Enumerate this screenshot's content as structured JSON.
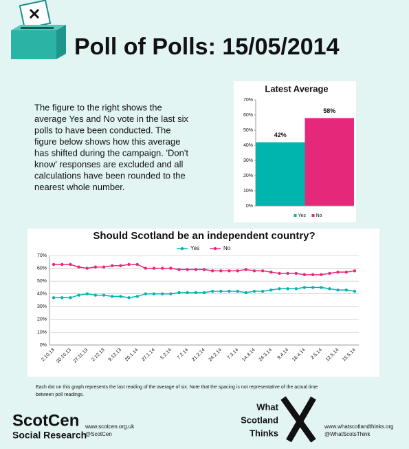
{
  "header": {
    "title": "Poll of Polls: 15/05/2014"
  },
  "intro": {
    "lines": [
      "The figure to the right shows the",
      "average Yes and No vote in the last six",
      "polls to have been conducted. The",
      "figure below shows how this average",
      "has shifted during the campaign. 'Don't",
      "know' responses are excluded  and all",
      "calculations have been rounded to the",
      "nearest whole number."
    ]
  },
  "chart_data": [
    {
      "type": "bar",
      "title": "Latest Average",
      "categories": [
        "Yes",
        "No"
      ],
      "values": [
        42,
        58
      ],
      "value_labels": [
        "42%",
        "58%"
      ],
      "colors": [
        "#00b5ad",
        "#e6287a"
      ],
      "ylim": [
        0,
        70
      ],
      "yticks": [
        {
          "value": 0,
          "label": "0%"
        },
        {
          "value": 10,
          "label": "10%"
        },
        {
          "value": 20,
          "label": "20%"
        },
        {
          "value": 30,
          "label": "30%"
        },
        {
          "value": 40,
          "label": "40%"
        },
        {
          "value": 50,
          "label": "50%"
        },
        {
          "value": 60,
          "label": "60%"
        },
        {
          "value": 70,
          "label": "70%"
        }
      ],
      "grid": false,
      "legend": "bottom"
    },
    {
      "type": "line",
      "title": "Should Scotland be an independent country?",
      "categories": [
        "2.10.13",
        null,
        "30.10.13",
        null,
        "27.11.13",
        null,
        "2.12.13",
        null,
        "9.12.13",
        null,
        "20.1.14",
        null,
        "27.1.14",
        null,
        "5.2.14",
        null,
        "7.2.14",
        null,
        "21.2.14",
        null,
        "24.2.14",
        null,
        "7.3.14",
        null,
        "14.3.14",
        null,
        "24.3.14",
        null,
        "9.4.14",
        null,
        "16.4.14",
        null,
        "2.5.14",
        null,
        "12.5.14",
        null,
        "15.5.14"
      ],
      "series": [
        {
          "name": "Yes",
          "color": "#00b5ad",
          "values": [
            37,
            37,
            37,
            39,
            40,
            39,
            39,
            38,
            38,
            37,
            38,
            40,
            40,
            40,
            40,
            41,
            41,
            41,
            41,
            42,
            42,
            42,
            42,
            41,
            42,
            42,
            43,
            44,
            44,
            44,
            45,
            45,
            45,
            44,
            43,
            43,
            42
          ]
        },
        {
          "name": "No",
          "color": "#e6287a",
          "values": [
            63,
            63,
            63,
            61,
            60,
            61,
            61,
            62,
            62,
            63,
            63,
            60,
            60,
            60,
            60,
            59,
            59,
            59,
            59,
            58,
            58,
            58,
            58,
            59,
            58,
            58,
            57,
            56,
            56,
            56,
            55,
            55,
            55,
            56,
            57,
            57,
            58
          ]
        }
      ],
      "ylim": [
        0,
        70
      ],
      "yticks": [
        {
          "value": 0,
          "label": "0%"
        },
        {
          "value": 10,
          "label": "10%"
        },
        {
          "value": 20,
          "label": "20%"
        },
        {
          "value": 30,
          "label": "30%"
        },
        {
          "value": 40,
          "label": "40%"
        },
        {
          "value": 50,
          "label": "50%"
        },
        {
          "value": 60,
          "label": "60%"
        },
        {
          "value": 70,
          "label": "70%"
        }
      ],
      "grid": true,
      "legend": "top"
    }
  ],
  "footer": {
    "note": [
      "Each dot on this graph represents the last reading of the average of six. Note that the spacing is not representative of the actual time",
      "between poll readings."
    ],
    "scotcen": {
      "name": "ScotCen",
      "sub": "Social Research",
      "url": "www.scotcen.org.uk",
      "handle": "@ScotCen"
    },
    "wst": {
      "lines": [
        "What",
        "Scotland",
        "Thinks"
      ],
      "url": "www.whatscotlandthinks.org",
      "handle": "@WhatScotsThink"
    }
  }
}
